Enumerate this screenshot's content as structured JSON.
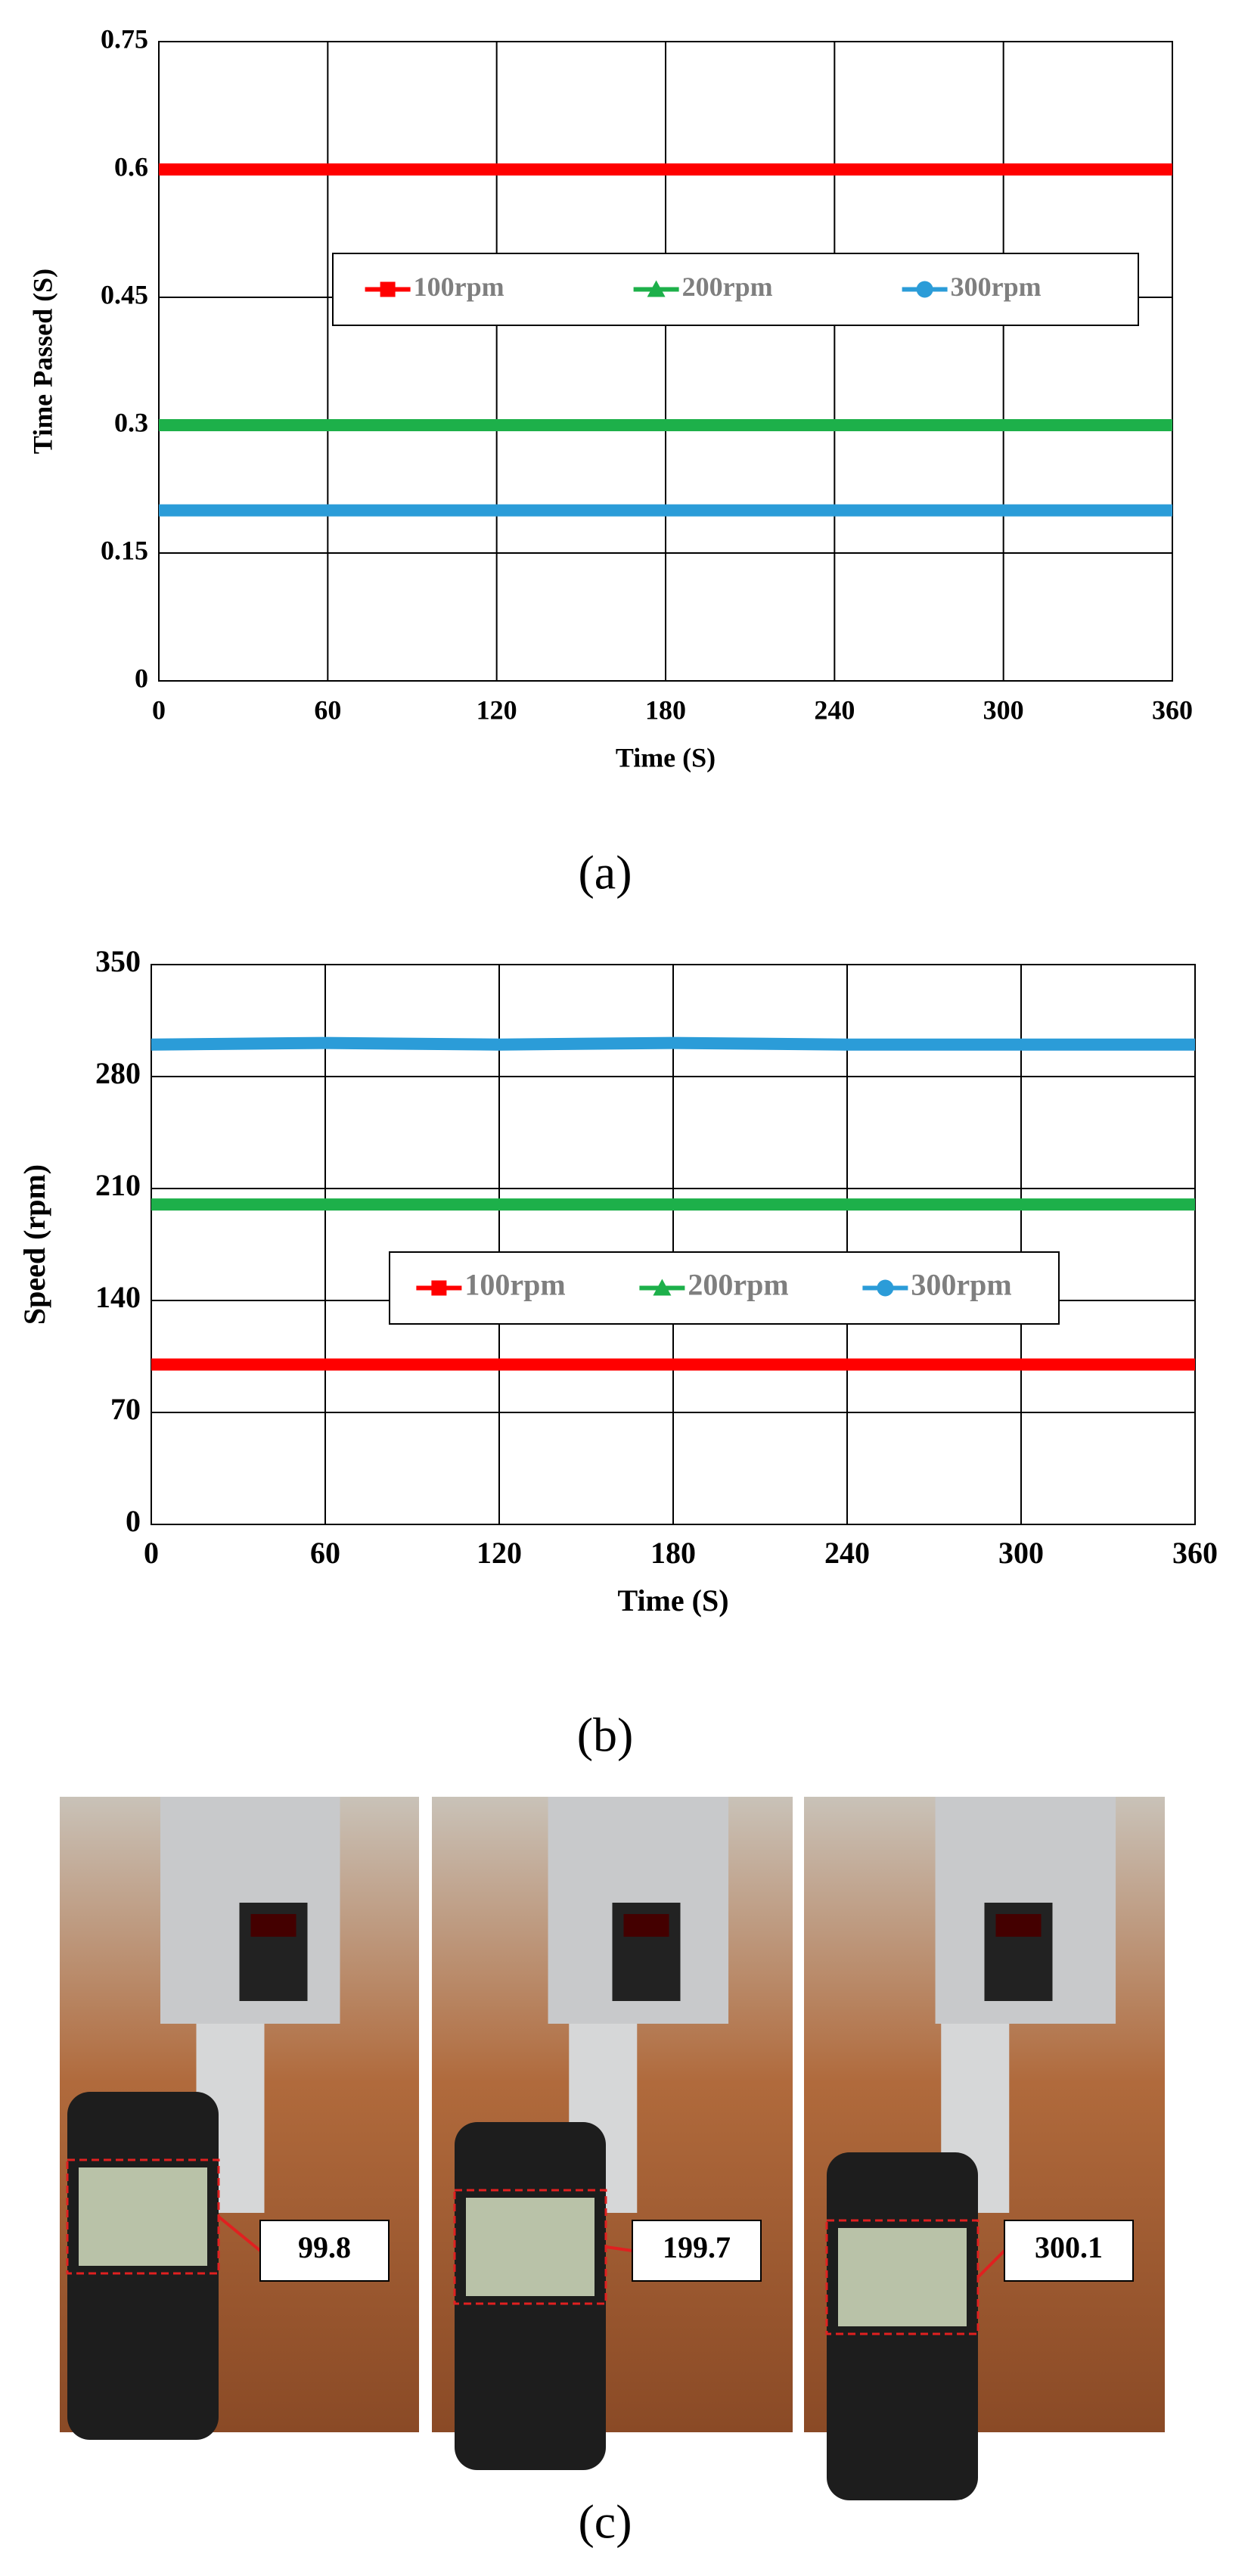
{
  "chart_data": [
    {
      "type": "line",
      "caption": "(a)",
      "x_label": "Time (S)",
      "y_label": "Time Passed (S)",
      "x": [
        0,
        60,
        120,
        180,
        240,
        300,
        360
      ],
      "series": [
        {
          "name": "100rpm",
          "color": "#ff0000",
          "marker": "square",
          "values": [
            0.6,
            0.6,
            0.6,
            0.6,
            0.6,
            0.6,
            0.6
          ]
        },
        {
          "name": "200rpm",
          "color": "#1db04a",
          "marker": "triangle",
          "values": [
            0.3,
            0.3,
            0.3,
            0.3,
            0.3,
            0.3,
            0.3
          ]
        },
        {
          "name": "300rpm",
          "color": "#2b9cd8",
          "marker": "circle",
          "values": [
            0.2,
            0.2,
            0.2,
            0.2,
            0.2,
            0.2,
            0.2
          ]
        }
      ],
      "xlim": [
        0,
        360
      ],
      "xticks": [
        0,
        60,
        120,
        180,
        240,
        300,
        360
      ],
      "ylim": [
        0,
        0.75
      ],
      "yticks": [
        0,
        0.15,
        0.3,
        0.45,
        0.6,
        0.75
      ],
      "grid": true
    },
    {
      "type": "line",
      "caption": "(b)",
      "x_label": "Time (S)",
      "y_label": "Speed  (rpm)",
      "x": [
        0,
        60,
        120,
        180,
        240,
        300,
        360
      ],
      "series": [
        {
          "name": "100rpm",
          "color": "#ff0000",
          "marker": "square",
          "values": [
            100,
            100,
            100,
            100,
            100,
            100,
            100
          ]
        },
        {
          "name": "200rpm",
          "color": "#1db04a",
          "marker": "triangle",
          "values": [
            200,
            200,
            200,
            200,
            200,
            200,
            200
          ]
        },
        {
          "name": "300rpm",
          "color": "#2b9cd8",
          "marker": "circle",
          "values": [
            300,
            301,
            300,
            301,
            300,
            300,
            300
          ]
        }
      ],
      "xlim": [
        0,
        360
      ],
      "xticks": [
        0,
        60,
        120,
        180,
        240,
        300,
        360
      ],
      "ylim": [
        0,
        350
      ],
      "yticks": [
        0,
        70,
        140,
        210,
        280,
        350
      ],
      "grid": true
    }
  ],
  "photos": {
    "readings": [
      "99.8",
      "199.7",
      "300.1"
    ],
    "caption": "(c)"
  }
}
